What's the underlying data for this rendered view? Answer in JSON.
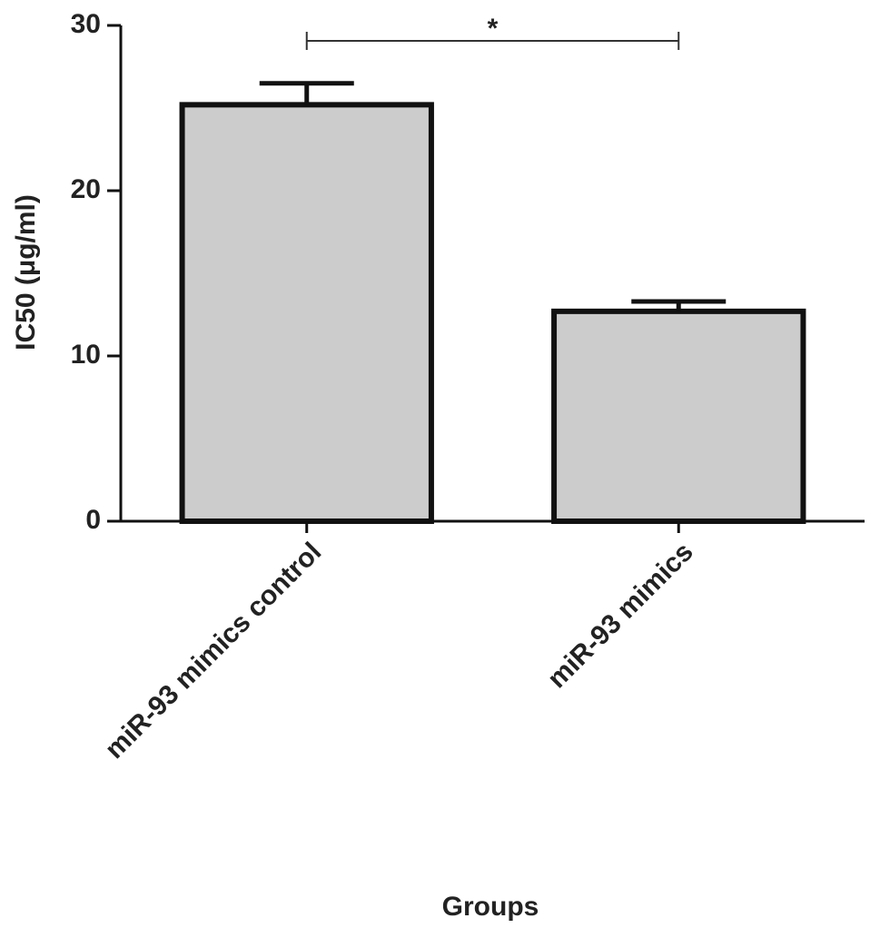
{
  "chart_data": {
    "type": "bar",
    "categories": [
      "miR-93 mimics control",
      "miR-93 mimics"
    ],
    "values": [
      25.2,
      12.7
    ],
    "errors": [
      1.3,
      0.6
    ],
    "color": "#cccccc",
    "ylabel": "IC50 (μg/ml)",
    "xlabel": "Groups",
    "annotations": [
      "*"
    ],
    "ylim": [
      0,
      30
    ],
    "yticks": [
      0,
      10,
      20,
      30
    ]
  }
}
